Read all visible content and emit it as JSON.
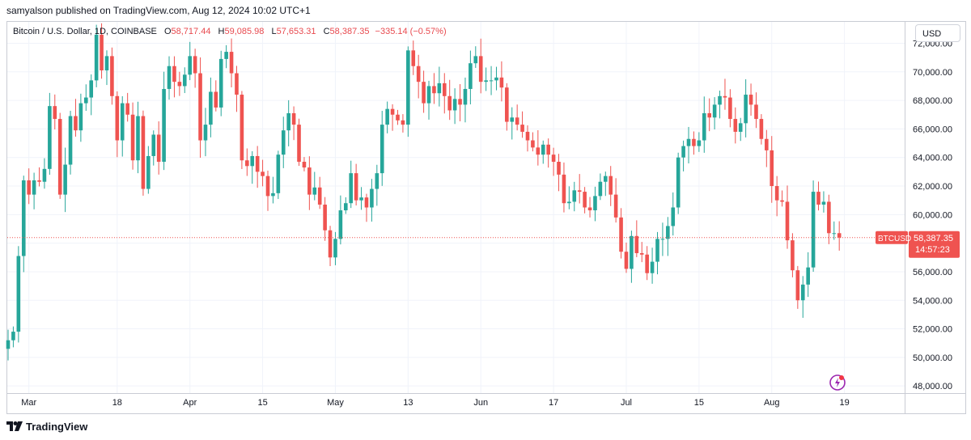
{
  "header": {
    "published": "samyalson published on TradingView.com, Aug 12, 2024 10:02 UTC+1"
  },
  "legend": {
    "symbol": "Bitcoin / U.S. Dollar, 1D, COINBASE",
    "open_label": "O",
    "open": "58,717.44",
    "high_label": "H",
    "high": "59,085.98",
    "low_label": "L",
    "low": "57,653.31",
    "close_label": "C",
    "close": "58,387.35",
    "change": "−335.14 (−0.57%)"
  },
  "currency_button": "USD",
  "price_tag": {
    "symbol": "BTCUSD",
    "price": "58,387.35",
    "countdown": "14:57:23"
  },
  "footer": {
    "brand": "TradingView"
  },
  "colors": {
    "up": "#26a69a",
    "down": "#ef5350",
    "grid": "#f0f3fa",
    "tag": "#ef5350"
  },
  "chart_data": {
    "type": "candlestick",
    "title": "Bitcoin / U.S. Dollar, 1D, COINBASE",
    "y_axis": {
      "min": 47500,
      "max": 73500,
      "ticks": [
        "48,000.00",
        "50,000.00",
        "52,000.00",
        "54,000.00",
        "56,000.00",
        "58,000.00",
        "60,000.00",
        "62,000.00",
        "64,000.00",
        "66,000.00",
        "68,000.00",
        "70,000.00",
        "72,000.00"
      ],
      "tick_values": [
        48000,
        50000,
        52000,
        54000,
        56000,
        58000,
        60000,
        62000,
        64000,
        66000,
        68000,
        70000,
        72000
      ]
    },
    "x_axis": {
      "labels": [
        "Mar",
        "18",
        "Apr",
        "15",
        "May",
        "13",
        "Jun",
        "17",
        "Jul",
        "15",
        "Aug",
        "19"
      ],
      "label_index": [
        4,
        21,
        35,
        49,
        63,
        77,
        91,
        105,
        119,
        133,
        147,
        161
      ]
    },
    "last_price": 58387.35,
    "closes": [
      51200,
      51800,
      57100,
      62400,
      61400,
      62400,
      62300,
      63200,
      67600,
      66700,
      61400,
      63500,
      66900,
      65900,
      67800,
      68200,
      69400,
      72600,
      70100,
      71100,
      68300,
      65200,
      67800,
      67000,
      63800,
      66900,
      61800,
      64100,
      65600,
      63700,
      68800,
      70400,
      69300,
      69000,
      69800,
      71100,
      69900,
      65200,
      66300,
      68600,
      67500,
      70900,
      71400,
      69900,
      68400,
      63800,
      63400,
      64100,
      63000,
      62700,
      61300,
      61500,
      64200,
      65900,
      67100,
      66300,
      63700,
      63300,
      61400,
      61900,
      60700,
      58900,
      57000,
      58300,
      60300,
      60800,
      62900,
      61000,
      61200,
      60500,
      61800,
      62900,
      66300,
      67400,
      67000,
      66600,
      66300,
      71500,
      70400,
      69300,
      67800,
      69000,
      68500,
      69200,
      68300,
      67300,
      68100,
      67700,
      68800,
      70600,
      71100,
      69300,
      69400,
      69400,
      69600,
      68900,
      66500,
      66800,
      66300,
      65800,
      65200,
      64700,
      64200,
      64900,
      64200,
      63700,
      62800,
      60800,
      60900,
      61700,
      61600,
      60500,
      60300,
      61300,
      62300,
      62700,
      61400,
      59800,
      57400,
      56200,
      58500,
      57300,
      57200,
      55900,
      56700,
      58300,
      58300,
      59200,
      60500,
      64000,
      64800,
      65300,
      64800,
      65200,
      67100,
      66800,
      67700,
      68300,
      68200,
      66700,
      65800,
      66400,
      68400,
      67700,
      66700,
      65300,
      64500,
      62000,
      61000,
      60900,
      58200,
      56100,
      54000,
      55100,
      56300,
      61600,
      60700,
      60900,
      58700,
      58700,
      58387
    ]
  }
}
